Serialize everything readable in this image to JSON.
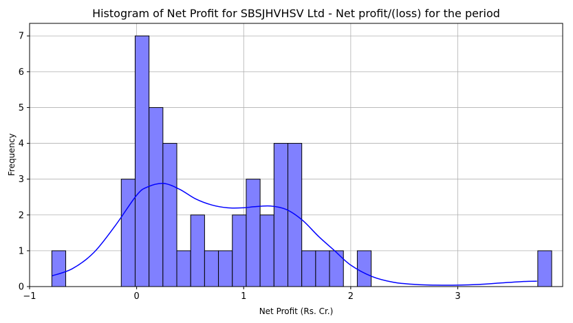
{
  "chart_data": {
    "type": "bar",
    "title": "Histogram of Net Profit for SBSJHVHSV Ltd - Net profit/(loss) for the period",
    "xlabel": "Net Profit (Rs. Cr.)",
    "ylabel": "Frequency",
    "xlim": [
      -1.0,
      3.98
    ],
    "ylim": [
      0,
      7.35
    ],
    "xticks": [
      -1,
      0,
      1,
      2,
      3
    ],
    "yticks": [
      0,
      1,
      2,
      3,
      4,
      5,
      6,
      7
    ],
    "grid": true,
    "bin_start": -0.792,
    "bin_width": 0.1297,
    "counts": [
      1,
      0,
      0,
      0,
      0,
      3,
      7,
      5,
      4,
      1,
      2,
      1,
      1,
      2,
      3,
      2,
      4,
      4,
      1,
      1,
      1,
      0,
      1,
      0,
      0,
      0,
      0,
      0,
      0,
      0,
      0,
      0,
      0,
      0,
      0,
      1
    ],
    "bar_color": "#8080ff",
    "edge_color": "#000000",
    "kde": {
      "color": "#0000ff",
      "x": [
        -0.79,
        -0.6,
        -0.4,
        -0.2,
        0.0,
        0.1,
        0.25,
        0.4,
        0.55,
        0.7,
        0.85,
        1.0,
        1.1,
        1.25,
        1.4,
        1.55,
        1.7,
        1.85,
        2.0,
        2.2,
        2.4,
        2.6,
        2.8,
        3.0,
        3.2,
        3.4,
        3.6,
        3.74
      ],
      "y": [
        0.3,
        0.5,
        0.95,
        1.7,
        2.55,
        2.78,
        2.88,
        2.72,
        2.45,
        2.28,
        2.2,
        2.2,
        2.23,
        2.25,
        2.15,
        1.85,
        1.4,
        1.0,
        0.6,
        0.28,
        0.12,
        0.06,
        0.04,
        0.04,
        0.06,
        0.1,
        0.14,
        0.15
      ]
    }
  }
}
